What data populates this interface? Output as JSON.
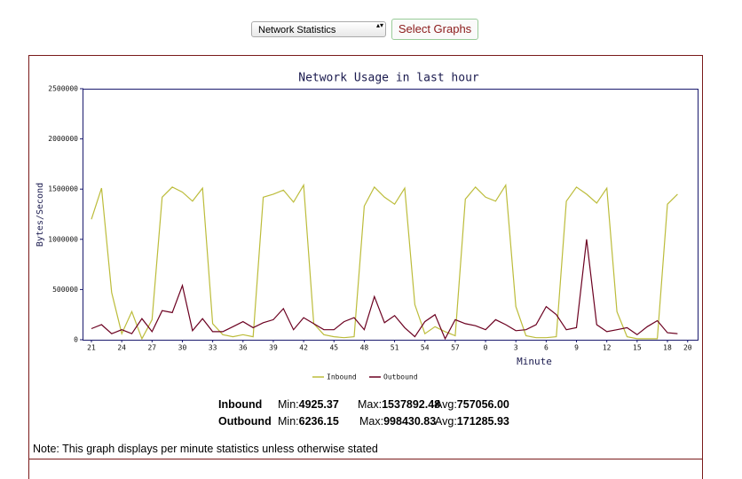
{
  "toolbar": {
    "select": "Network Statistics",
    "button": "Select Graphs"
  },
  "chart_data": {
    "type": "line",
    "title": "Network Usage in last hour",
    "x_label": "Minute",
    "y_label": "Bytes/Second",
    "categories": [
      "21",
      null,
      null,
      "24",
      null,
      null,
      "27",
      null,
      null,
      "30",
      null,
      null,
      "33",
      null,
      null,
      "36",
      null,
      null,
      "39",
      null,
      null,
      "42",
      null,
      null,
      "45",
      null,
      null,
      "48",
      null,
      null,
      "51",
      null,
      null,
      "54",
      null,
      null,
      "57",
      null,
      null,
      "0",
      null,
      null,
      "3",
      null,
      null,
      "6",
      null,
      null,
      "9",
      null,
      null,
      "12",
      null,
      null,
      "15",
      null,
      null,
      "18",
      null,
      "20"
    ],
    "series": [
      {
        "name": "Inbound",
        "color": "#bcbc3a",
        "values": [
          1200000,
          1510000,
          470000,
          60000,
          280000,
          10000,
          200000,
          1420000,
          1520000,
          1470000,
          1380000,
          1510000,
          160000,
          50000,
          30000,
          50000,
          30000,
          1420000,
          1450000,
          1490000,
          1370000,
          1540000,
          160000,
          50000,
          30000,
          20000,
          30000,
          1330000,
          1520000,
          1420000,
          1350000,
          1510000,
          350000,
          60000,
          130000,
          80000,
          40000,
          1400000,
          1520000,
          1420000,
          1380000,
          1540000,
          330000,
          40000,
          20000,
          20000,
          30000,
          1380000,
          1520000,
          1450000,
          1360000,
          1510000,
          280000,
          30000,
          10000,
          10000,
          10000,
          1350000,
          1450000,
          null
        ]
      },
      {
        "name": "Outbound",
        "color": "#6b0020",
        "values": [
          110000,
          150000,
          60000,
          100000,
          60000,
          210000,
          80000,
          290000,
          270000,
          540000,
          90000,
          210000,
          80000,
          80000,
          130000,
          180000,
          120000,
          170000,
          200000,
          310000,
          100000,
          220000,
          160000,
          100000,
          100000,
          180000,
          220000,
          100000,
          430000,
          170000,
          240000,
          120000,
          30000,
          180000,
          250000,
          10000,
          200000,
          160000,
          140000,
          100000,
          200000,
          150000,
          90000,
          100000,
          150000,
          330000,
          250000,
          100000,
          120000,
          1000000,
          150000,
          80000,
          100000,
          120000,
          50000,
          130000,
          190000,
          70000,
          60000,
          null
        ]
      }
    ],
    "ylim": [
      0,
      2500000
    ],
    "yticks": [
      0,
      500000,
      1000000,
      1500000,
      2000000,
      2500000
    ]
  },
  "stats": {
    "labels": [
      "Min:",
      "Max:",
      "Avg:"
    ],
    "rows": [
      {
        "name": "Inbound",
        "min": "4925.37",
        "max": "1537892.48",
        "avg": "757056.00"
      },
      {
        "name": "Outbound",
        "min": "6236.15",
        "max": "998430.83",
        "avg": "171285.93"
      }
    ]
  },
  "note": "Note: This graph displays per minute statistics unless otherwise stated"
}
